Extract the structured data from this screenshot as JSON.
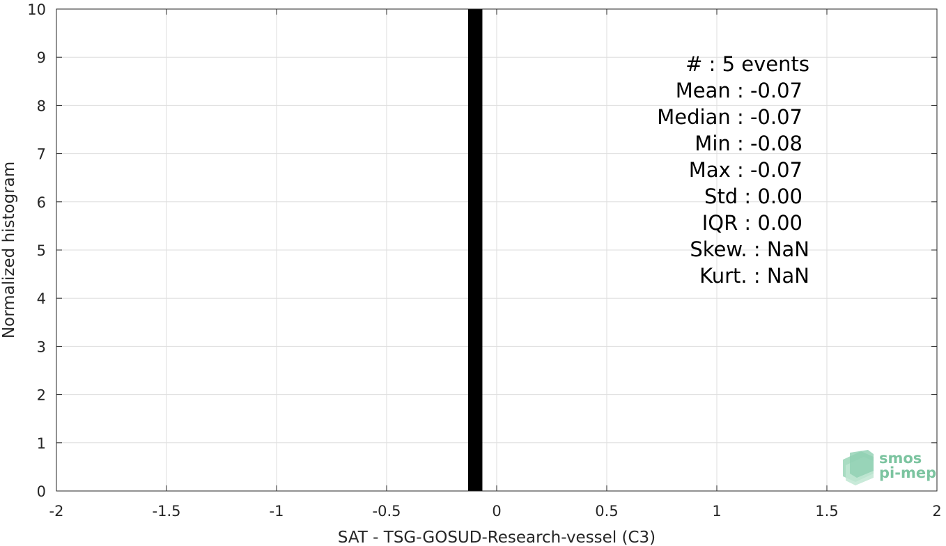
{
  "chart_data": {
    "type": "bar",
    "xlabel": "SAT - TSG-GOSUD-Research-vessel (C3)",
    "ylabel": "Normalized histogram",
    "xlim": [
      -2,
      2
    ],
    "ylim": [
      0,
      10
    ],
    "xticks": [
      -2,
      -1.5,
      -1,
      -0.5,
      0,
      0.5,
      1,
      1.5,
      2
    ],
    "xtick_labels": [
      "-2",
      "-1.5",
      "-1",
      "-0.5",
      "0",
      "0.5",
      "1",
      "1.5",
      "2"
    ],
    "yticks": [
      0,
      1,
      2,
      3,
      4,
      5,
      6,
      7,
      8,
      9,
      10
    ],
    "ytick_labels": [
      "0",
      "1",
      "2",
      "3",
      "4",
      "5",
      "6",
      "7",
      "8",
      "9",
      "10"
    ],
    "grid": true,
    "bars": [
      {
        "x_start": -0.13,
        "x_end": -0.065,
        "value": 10
      }
    ],
    "bar_color": "#000000",
    "annotations": [
      "#  : 5 events",
      "Mean : -0.07",
      "Median : -0.07",
      "Min : -0.08",
      "Max : -0.07",
      "Std : 0.00",
      "IQR : 0.00",
      "Skew. : NaN",
      "Kurt. : NaN"
    ]
  },
  "logo": {
    "line1": "smos",
    "line2": "pi-mep",
    "color": "#7cc4a0"
  }
}
